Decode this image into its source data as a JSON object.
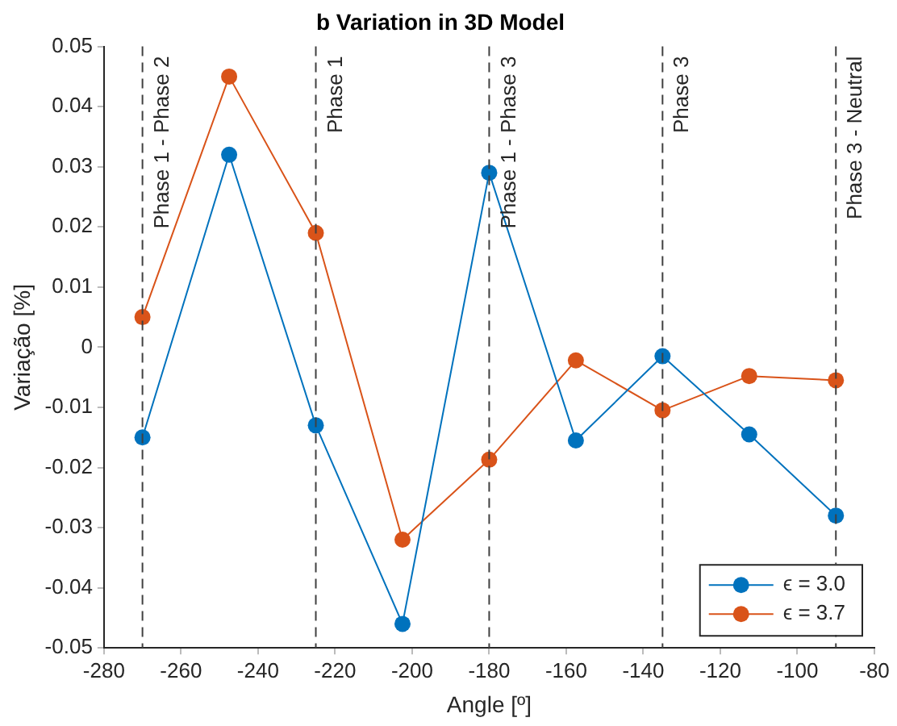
{
  "chart_data": {
    "type": "line",
    "title": "b Variation in 3D Model",
    "xlabel": "Angle [º]",
    "ylabel": "Variação [%]",
    "x": [
      -270,
      -247.5,
      -225,
      -202.5,
      -180,
      -157.5,
      -135,
      -112.5,
      -90
    ],
    "series": [
      {
        "name": "ϵ = 3.0",
        "color": "#0072bd",
        "values": [
          -0.015,
          0.032,
          -0.013,
          -0.046,
          0.029,
          -0.0155,
          -0.0015,
          -0.0145,
          -0.028
        ]
      },
      {
        "name": "ϵ = 3.7",
        "color": "#d95319",
        "values": [
          0.005,
          0.045,
          0.019,
          -0.032,
          -0.0187,
          -0.0022,
          -0.0105,
          -0.0048,
          -0.0055
        ]
      }
    ],
    "xlim": [
      -280,
      -80
    ],
    "xticks": [
      -280,
      -260,
      -240,
      -220,
      -200,
      -180,
      -160,
      -140,
      -120,
      -100,
      -80
    ],
    "ylim": [
      -0.05,
      0.05
    ],
    "yticks": [
      -0.05,
      -0.04,
      -0.03,
      -0.02,
      -0.01,
      0,
      0.01,
      0.02,
      0.03,
      0.04,
      0.05
    ],
    "ref_lines": [
      {
        "axis": "x",
        "value": -270,
        "label": "Phase 1 - Phase 2",
        "color": "#404040",
        "line_style": "dashed"
      },
      {
        "axis": "x",
        "value": -225,
        "label": "Phase 1",
        "color": "#404040",
        "line_style": "dashed"
      },
      {
        "axis": "x",
        "value": -180,
        "label": "Phase 1 - Phase 3",
        "color": "#404040",
        "line_style": "dashed"
      },
      {
        "axis": "x",
        "value": -135,
        "label": "Phase 3",
        "color": "#404040",
        "line_style": "dashed"
      },
      {
        "axis": "x",
        "value": -90,
        "label": "Phase 3 - Neutral",
        "color": "#404040",
        "line_style": "dashed"
      }
    ],
    "grid": false,
    "legend": "bottom right",
    "marker": "circle",
    "line_style": "solid"
  }
}
